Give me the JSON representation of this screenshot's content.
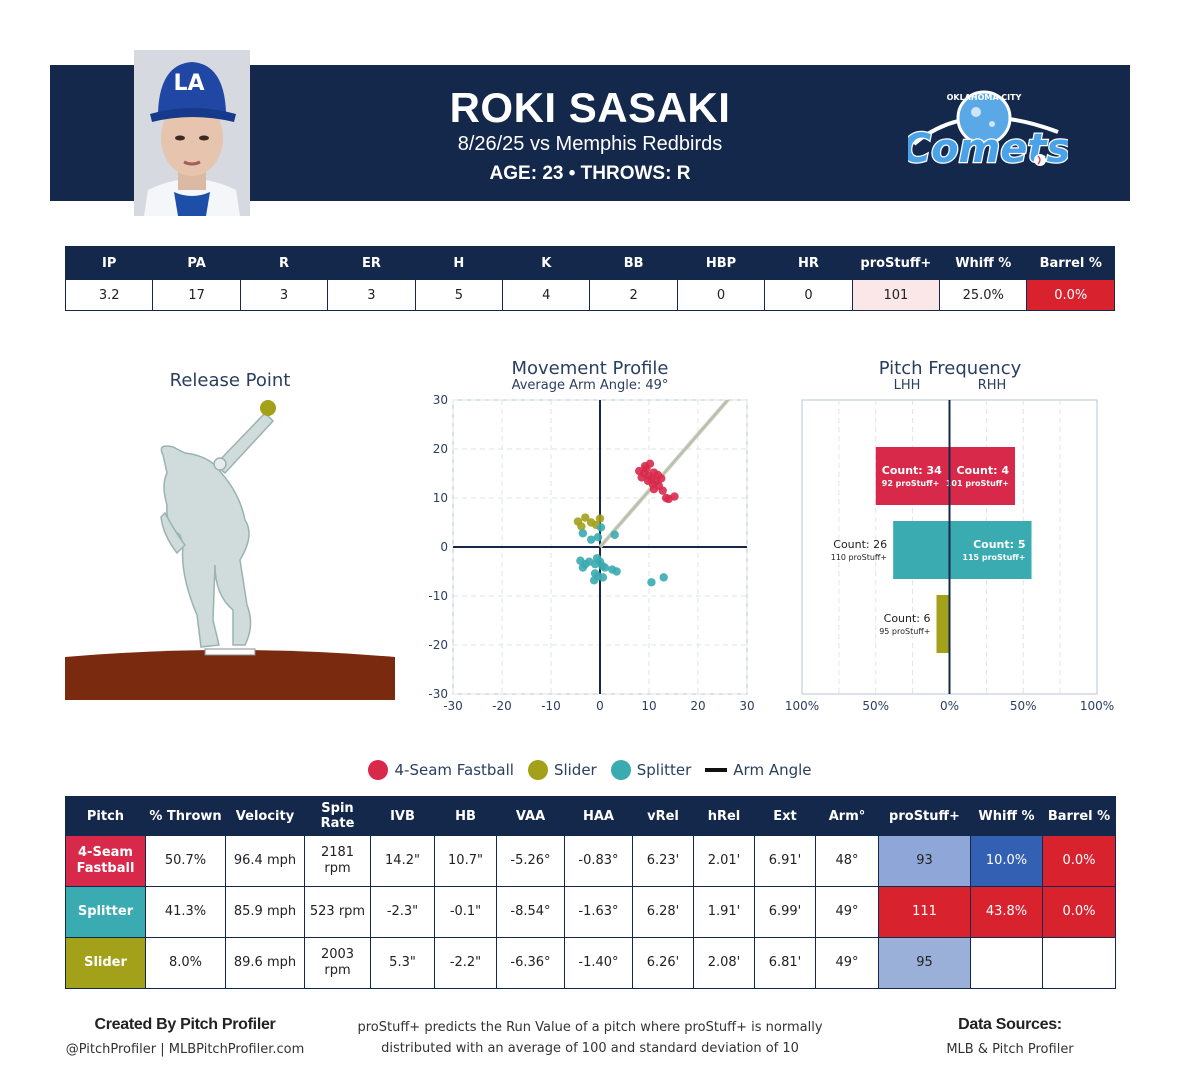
{
  "header": {
    "name": "ROKI SASAKI",
    "game": "8/26/25 vs Memphis Redbirds",
    "meta": "AGE: 23 • THROWS: R",
    "cap_logo": "LA",
    "team_logo_top": "OKLAHOMA CITY",
    "team_logo_main": "Comets",
    "colors": {
      "banner": "#14284b"
    }
  },
  "stats": {
    "headers": [
      "IP",
      "PA",
      "R",
      "ER",
      "H",
      "K",
      "BB",
      "HBP",
      "HR",
      "proStuff+",
      "Whiff %",
      "Barrel %"
    ],
    "values": [
      "3.2",
      "17",
      "3",
      "3",
      "5",
      "4",
      "2",
      "0",
      "0",
      "101",
      "25.0%",
      "0.0%"
    ],
    "cell_colors": [
      "#ffffff",
      "#ffffff",
      "#ffffff",
      "#ffffff",
      "#ffffff",
      "#ffffff",
      "#ffffff",
      "#ffffff",
      "#ffffff",
      "#fbe6e8",
      "#ffffff",
      "#d8232f"
    ],
    "text_colors": [
      "#222",
      "#222",
      "#222",
      "#222",
      "#222",
      "#222",
      "#222",
      "#222",
      "#222",
      "#222",
      "#222",
      "#ffffff"
    ]
  },
  "release": {
    "title": "Release Point"
  },
  "chart_data": [
    {
      "type": "scatter",
      "title": "Movement Profile",
      "subtitle": "Average Arm Angle: 49°",
      "xlim": [
        -30,
        30
      ],
      "ylim": [
        -30,
        30
      ],
      "xticks": [
        -30,
        -20,
        -10,
        0,
        10,
        20,
        30
      ],
      "yticks": [
        -30,
        -20,
        -10,
        0,
        10,
        20,
        30
      ],
      "grid": true,
      "arm_angle_deg": 49,
      "series": [
        {
          "name": "4-Seam Fastball",
          "color": "#d8294b",
          "points": [
            [
              8,
              15.5
            ],
            [
              8.5,
              14.2
            ],
            [
              9,
              15
            ],
            [
              9.5,
              16
            ],
            [
              10,
              14.5
            ],
            [
              10.5,
              13.8
            ],
            [
              11,
              15.2
            ],
            [
              9.8,
              13.5
            ],
            [
              10.8,
              12.8
            ],
            [
              11.5,
              13.5
            ],
            [
              12,
              12.5
            ],
            [
              12.5,
              14
            ],
            [
              11,
              11.8
            ],
            [
              12.8,
              11.5
            ],
            [
              13.5,
              10
            ],
            [
              14,
              9.8
            ],
            [
              15.2,
              10.3
            ],
            [
              10.2,
              17
            ],
            [
              9.2,
              16.5
            ],
            [
              11.8,
              14.7
            ]
          ]
        },
        {
          "name": "Slider",
          "color": "#a3a01a",
          "points": [
            [
              -4.5,
              5.2
            ],
            [
              -3.8,
              4.2
            ],
            [
              -3,
              6
            ],
            [
              -1.8,
              5
            ],
            [
              -0.8,
              4.5
            ],
            [
              0,
              5.8
            ]
          ]
        },
        {
          "name": "Splitter",
          "color": "#3aabb0",
          "points": [
            [
              -3.5,
              2.8
            ],
            [
              -1.8,
              1.5
            ],
            [
              -0.4,
              2
            ],
            [
              0.2,
              4
            ],
            [
              3,
              2.5
            ],
            [
              -4,
              -2.8
            ],
            [
              -3,
              -3.5
            ],
            [
              -3.5,
              -4.2
            ],
            [
              -2.2,
              -3
            ],
            [
              -1,
              -3.5
            ],
            [
              -0.6,
              -2.3
            ],
            [
              0,
              -3
            ],
            [
              0.5,
              -3.9
            ],
            [
              1,
              -4.2
            ],
            [
              2.5,
              -4.6
            ],
            [
              -1,
              -5.4
            ],
            [
              -0.4,
              -6
            ],
            [
              0.6,
              -6.2
            ],
            [
              -1.2,
              -6.8
            ],
            [
              3.4,
              -5
            ],
            [
              10.5,
              -7.2
            ],
            [
              13,
              -6.2
            ]
          ]
        }
      ]
    },
    {
      "type": "bar",
      "title": "Pitch Frequency",
      "left_label": "LHH",
      "right_label": "RHH",
      "xticks": [
        "100%",
        "50%",
        "0%",
        "50%",
        "100%"
      ],
      "xlim": [
        -100,
        100
      ],
      "bars": [
        {
          "pitch": "4-Seam Fastball",
          "color": "#d8294b",
          "lhh_pct": 50.0,
          "rhh_pct": 44.4,
          "lhh_label": "Count: 34",
          "lhh_sub": "92 proStuff+",
          "rhh_label": "Count: 4",
          "rhh_sub": "101 proStuff+"
        },
        {
          "pitch": "Splitter",
          "color": "#3aabb0",
          "lhh_pct": 38.2,
          "rhh_pct": 55.6,
          "lhh_label": "Count: 26",
          "lhh_sub": "110 proStuff+",
          "rhh_label": "Count: 5",
          "rhh_sub": "115 proStuff+"
        },
        {
          "pitch": "Slider",
          "color": "#a3a01a",
          "lhh_pct": 8.8,
          "rhh_pct": 0,
          "lhh_label": "Count: 6",
          "lhh_sub": "95 proStuff+",
          "rhh_label": "",
          "rhh_sub": ""
        }
      ]
    }
  ],
  "legend": [
    {
      "label": "4-Seam Fastball",
      "color": "#d8294b",
      "kind": "dot"
    },
    {
      "label": "Slider",
      "color": "#a3a01a",
      "kind": "dot"
    },
    {
      "label": "Splitter",
      "color": "#3aabb0",
      "kind": "dot"
    },
    {
      "label": "Arm Angle",
      "color": "#111111",
      "kind": "line"
    }
  ],
  "pitch_table": {
    "headers": [
      "Pitch",
      "% Thrown",
      "Velocity",
      "Spin Rate",
      "IVB",
      "HB",
      "VAA",
      "HAA",
      "vRel",
      "hRel",
      "Ext",
      "Arm°",
      "proStuff+",
      "Whiff %",
      "Barrel %"
    ],
    "rows": [
      {
        "color": "#d8294b",
        "cells": [
          "4-Seam Fastball",
          "50.7%",
          "96.4 mph",
          "2181 rpm",
          "14.2\"",
          "10.7\"",
          "-5.26°",
          "-0.83°",
          "6.23'",
          "2.01'",
          "6.91'",
          "48°",
          "93",
          "10.0%",
          "0.0%"
        ],
        "bg": [
          "#d8294b",
          "#fff",
          "#fff",
          "#fff",
          "#fff",
          "#fff",
          "#fff",
          "#fff",
          "#fff",
          "#fff",
          "#fff",
          "#fff",
          "#8ea7d8",
          "#3460b4",
          "#d8232f"
        ],
        "fg": [
          "#fff",
          "#222",
          "#222",
          "#222",
          "#222",
          "#222",
          "#222",
          "#222",
          "#222",
          "#222",
          "#222",
          "#222",
          "#222",
          "#fff",
          "#fff"
        ]
      },
      {
        "color": "#3aabb0",
        "cells": [
          "Splitter",
          "41.3%",
          "85.9 mph",
          "523 rpm",
          "-2.3\"",
          "-0.1\"",
          "-8.54°",
          "-1.63°",
          "6.28'",
          "1.91'",
          "6.99'",
          "49°",
          "111",
          "43.8%",
          "0.0%"
        ],
        "bg": [
          "#3aabb0",
          "#fff",
          "#fff",
          "#fff",
          "#fff",
          "#fff",
          "#fff",
          "#fff",
          "#fff",
          "#fff",
          "#fff",
          "#fff",
          "#d8232f",
          "#d8232f",
          "#d8232f"
        ],
        "fg": [
          "#fff",
          "#222",
          "#222",
          "#222",
          "#222",
          "#222",
          "#222",
          "#222",
          "#222",
          "#222",
          "#222",
          "#222",
          "#fff",
          "#fff",
          "#fff"
        ]
      },
      {
        "color": "#a3a01a",
        "cells": [
          "Slider",
          "8.0%",
          "89.6 mph",
          "2003 rpm",
          "5.3\"",
          "-2.2\"",
          "-6.36°",
          "-1.40°",
          "6.26'",
          "2.08'",
          "6.81'",
          "49°",
          "95",
          "",
          ""
        ],
        "bg": [
          "#a3a01a",
          "#fff",
          "#fff",
          "#fff",
          "#fff",
          "#fff",
          "#fff",
          "#fff",
          "#fff",
          "#fff",
          "#fff",
          "#fff",
          "#9bb0d8",
          "#fff",
          "#fff"
        ],
        "fg": [
          "#fff",
          "#222",
          "#222",
          "#222",
          "#222",
          "#222",
          "#222",
          "#222",
          "#222",
          "#222",
          "#222",
          "#222",
          "#222",
          "#222",
          "#222"
        ]
      }
    ]
  },
  "footer": {
    "left_title": "Created By Pitch Profiler",
    "left_sub": "@PitchProfiler | MLBPitchProfiler.com",
    "mid_line1": "proStuff+ predicts the Run Value of a pitch where proStuff+ is normally",
    "mid_line2": "distributed with an average of 100 and standard deviation of 10",
    "right_title": "Data Sources:",
    "right_sub": "MLB & Pitch Profiler"
  }
}
